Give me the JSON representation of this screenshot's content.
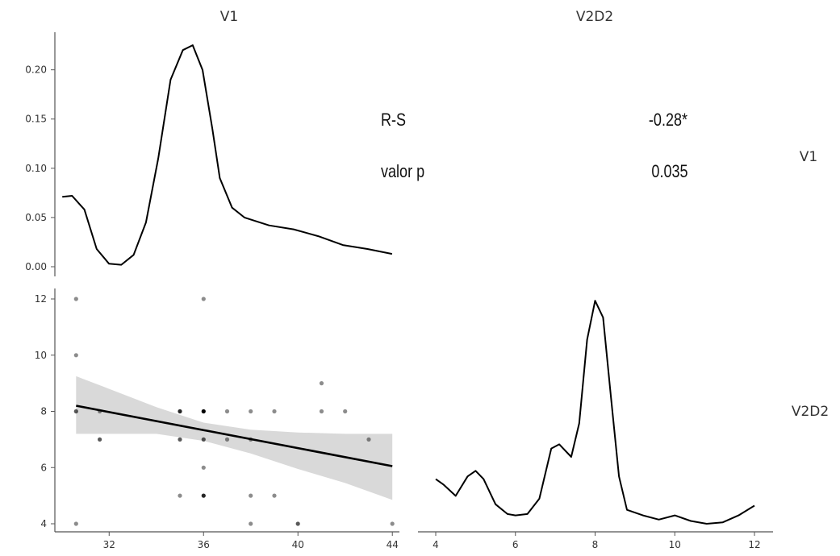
{
  "chart_data": {
    "type": "scatter-matrix",
    "variables": [
      "V1",
      "V2D2"
    ],
    "colors": {
      "line": "#000000",
      "band": "#d9d9d9",
      "axis": "#555555",
      "point": "#000000"
    },
    "density_v1": {
      "ylim": [
        0,
        0.23
      ],
      "y_ticks": [
        "0.00",
        "0.05",
        "0.10",
        "0.15",
        "0.20"
      ],
      "x": [
        30.6,
        31.0,
        31.5,
        32.0,
        32.5,
        33.0,
        33.5,
        34.0,
        34.5,
        35.0,
        35.5,
        35.9,
        36.3,
        36.7,
        37.0,
        37.5,
        38.0,
        39.0,
        40.0,
        41.0,
        42.0,
        43.0,
        44.0
      ],
      "y": [
        0.071,
        0.072,
        0.058,
        0.018,
        0.003,
        0.002,
        0.012,
        0.045,
        0.11,
        0.19,
        0.22,
        0.225,
        0.2,
        0.14,
        0.09,
        0.06,
        0.05,
        0.042,
        0.038,
        0.031,
        0.022,
        0.018,
        0.013
      ]
    },
    "correlation": {
      "rows": [
        {
          "label": "R-S",
          "value": "-0.28*"
        },
        {
          "label": "valor p",
          "value": "0.035"
        }
      ]
    },
    "scatter": {
      "xlim": [
        29.7,
        44.3
      ],
      "ylim": [
        3.5,
        12.5
      ],
      "x_ticks": [
        "32",
        "36",
        "40",
        "44"
      ],
      "y_ticks": [
        "4",
        "6",
        "8",
        "10",
        "12"
      ],
      "points": [
        {
          "x": 30.6,
          "y": 12,
          "n": 1
        },
        {
          "x": 30.6,
          "y": 10,
          "n": 1
        },
        {
          "x": 30.6,
          "y": 8,
          "n": 2
        },
        {
          "x": 30.6,
          "y": 4,
          "n": 1
        },
        {
          "x": 31.6,
          "y": 8,
          "n": 1
        },
        {
          "x": 31.6,
          "y": 7,
          "n": 2
        },
        {
          "x": 35,
          "y": 8,
          "n": 3
        },
        {
          "x": 35,
          "y": 7,
          "n": 2
        },
        {
          "x": 35,
          "y": 5,
          "n": 1
        },
        {
          "x": 36,
          "y": 12,
          "n": 1
        },
        {
          "x": 36,
          "y": 8,
          "n": 4
        },
        {
          "x": 36,
          "y": 7,
          "n": 2
        },
        {
          "x": 36,
          "y": 6,
          "n": 1
        },
        {
          "x": 36,
          "y": 5,
          "n": 3
        },
        {
          "x": 37,
          "y": 8,
          "n": 1
        },
        {
          "x": 37,
          "y": 7,
          "n": 1
        },
        {
          "x": 38,
          "y": 8,
          "n": 1
        },
        {
          "x": 38,
          "y": 7,
          "n": 1
        },
        {
          "x": 38,
          "y": 5,
          "n": 1
        },
        {
          "x": 38,
          "y": 4,
          "n": 1
        },
        {
          "x": 39,
          "y": 8,
          "n": 1
        },
        {
          "x": 39,
          "y": 5,
          "n": 1
        },
        {
          "x": 40,
          "y": 4,
          "n": 2
        },
        {
          "x": 41,
          "y": 9,
          "n": 1
        },
        {
          "x": 41,
          "y": 8,
          "n": 1
        },
        {
          "x": 42,
          "y": 8,
          "n": 1
        },
        {
          "x": 43,
          "y": 7,
          "n": 1
        },
        {
          "x": 44,
          "y": 4,
          "n": 1
        }
      ],
      "fit": {
        "x": [
          30.6,
          44.0
        ],
        "y": [
          8.2,
          6.05
        ]
      },
      "band": {
        "x": [
          30.6,
          32.0,
          34.0,
          36.0,
          38.0,
          40.0,
          42.0,
          44.0
        ],
        "upper": [
          9.25,
          8.8,
          8.15,
          7.6,
          7.35,
          7.25,
          7.2,
          7.2
        ],
        "lower": [
          7.2,
          7.2,
          7.2,
          6.95,
          6.5,
          5.95,
          5.45,
          4.85
        ]
      }
    },
    "density_v2d2": {
      "ylim": [
        4,
        12.15
      ],
      "x_ticks": [
        "4",
        "6",
        "8",
        "10",
        "12"
      ],
      "x": [
        4.0,
        4.2,
        4.5,
        4.8,
        5.0,
        5.2,
        5.5,
        5.8,
        6.0,
        6.3,
        6.6,
        6.9,
        7.1,
        7.4,
        7.6,
        7.8,
        8.0,
        8.2,
        8.4,
        8.6,
        8.8,
        9.2,
        9.6,
        10.0,
        10.4,
        10.8,
        11.2,
        11.6,
        12.0
      ],
      "y": [
        5.6,
        5.4,
        5.0,
        5.7,
        5.9,
        5.6,
        4.7,
        4.35,
        4.3,
        4.35,
        4.9,
        6.7,
        6.85,
        6.4,
        7.6,
        10.6,
        12.0,
        11.4,
        8.5,
        5.7,
        4.5,
        4.3,
        4.15,
        4.3,
        4.1,
        4.0,
        4.05,
        4.3,
        4.65
      ]
    }
  }
}
